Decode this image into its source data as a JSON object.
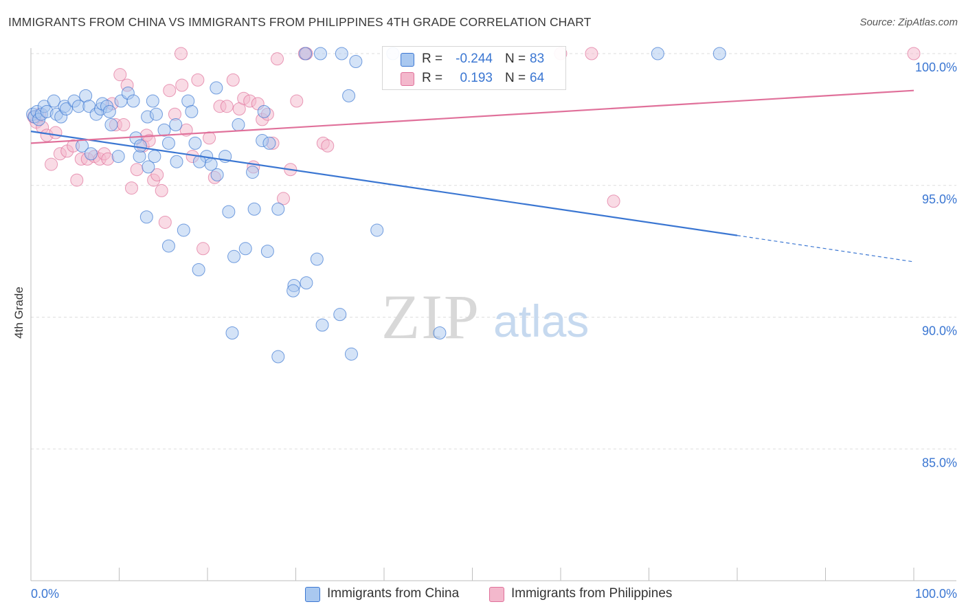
{
  "title": "IMMIGRANTS FROM CHINA VS IMMIGRANTS FROM PHILIPPINES 4TH GRADE CORRELATION CHART",
  "source": "Source: ZipAtlas.com",
  "watermark": {
    "zip": "ZIP",
    "atlas": "atlas"
  },
  "colors": {
    "china": "#3a76d2",
    "china_fill": "#a9c8f0",
    "philippines": "#e0709a",
    "philippines_fill": "#f3b8cc",
    "grid": "#dddddd",
    "axis_text": "#3a76d2"
  },
  "legend": {
    "rows": [
      {
        "r_label": "R =",
        "r_value": "-0.244",
        "n_label": "N =",
        "n_value": "83"
      },
      {
        "r_label": "R =",
        "r_value": "0.193",
        "n_label": "N =",
        "n_value": "64"
      }
    ]
  },
  "bottom_legend": {
    "china": "Immigrants from China",
    "philippines": "Immigrants from Philippines"
  },
  "chart_data": {
    "type": "scatter",
    "title": "IMMIGRANTS FROM CHINA VS IMMIGRANTS FROM PHILIPPINES 4TH GRADE CORRELATION CHART",
    "xlabel": "",
    "ylabel": "4th Grade",
    "xlim": [
      0,
      100
    ],
    "ylim": [
      80.5,
      100.8
    ],
    "x_tick_labels": [
      "0.0%",
      "100.0%"
    ],
    "y_ticks": [
      85,
      90,
      95,
      100
    ],
    "y_tick_labels": [
      "85.0%",
      "90.0%",
      "95.0%",
      "100.0%"
    ],
    "grid": true,
    "series": [
      {
        "name": "Immigrants from China",
        "color": "#3a76d2",
        "r": -0.244,
        "n": 83,
        "trend": {
          "x0": 0,
          "y0": 97.05,
          "x1": 80,
          "y1": 93.1,
          "dash_to_x": 100,
          "dash_to_y": 92.1
        },
        "points": [
          [
            0.2,
            97.7
          ],
          [
            0.4,
            97.6
          ],
          [
            0.7,
            97.8
          ],
          [
            0.9,
            97.5
          ],
          [
            1.2,
            97.7
          ],
          [
            1.5,
            98.0
          ],
          [
            1.8,
            97.8
          ],
          [
            2.6,
            98.2
          ],
          [
            2.9,
            97.7
          ],
          [
            3.4,
            97.6
          ],
          [
            3.8,
            98.0
          ],
          [
            4.0,
            97.9
          ],
          [
            4.9,
            98.2
          ],
          [
            5.4,
            98.0
          ],
          [
            6.2,
            98.4
          ],
          [
            6.6,
            98.0
          ],
          [
            7.4,
            97.7
          ],
          [
            7.9,
            97.9
          ],
          [
            8.1,
            98.1
          ],
          [
            8.6,
            98.0
          ],
          [
            8.9,
            97.8
          ],
          [
            9.1,
            97.3
          ],
          [
            9.9,
            96.1
          ],
          [
            10.2,
            98.2
          ],
          [
            11.0,
            98.5
          ],
          [
            11.6,
            98.2
          ],
          [
            12.3,
            96.1
          ],
          [
            13.2,
            97.6
          ],
          [
            13.8,
            98.2
          ],
          [
            14.2,
            97.7
          ],
          [
            15.1,
            97.1
          ],
          [
            15.6,
            96.6
          ],
          [
            16.4,
            97.3
          ],
          [
            17.8,
            98.2
          ],
          [
            18.2,
            97.8
          ],
          [
            18.6,
            96.6
          ],
          [
            19.9,
            96.1
          ],
          [
            20.4,
            95.8
          ],
          [
            21.1,
            95.4
          ],
          [
            22.0,
            96.1
          ],
          [
            23.5,
            97.3
          ],
          [
            25.1,
            95.5
          ],
          [
            26.2,
            96.7
          ],
          [
            26.4,
            97.8
          ],
          [
            27.0,
            96.6
          ],
          [
            28.0,
            94.1
          ],
          [
            31.1,
            100.0
          ],
          [
            32.8,
            100.0
          ],
          [
            35.2,
            100.0
          ],
          [
            36.8,
            99.7
          ],
          [
            36.0,
            98.4
          ],
          [
            41.0,
            100.0
          ],
          [
            71.0,
            100.0
          ],
          [
            78.0,
            100.0
          ],
          [
            5.8,
            96.5
          ],
          [
            6.8,
            96.2
          ],
          [
            13.3,
            95.7
          ],
          [
            14.0,
            96.1
          ],
          [
            16.5,
            95.9
          ],
          [
            19.1,
            95.9
          ],
          [
            21.0,
            98.7
          ],
          [
            11.9,
            96.8
          ],
          [
            12.4,
            96.5
          ],
          [
            13.1,
            93.8
          ],
          [
            15.6,
            92.7
          ],
          [
            17.3,
            93.3
          ],
          [
            19.0,
            91.8
          ],
          [
            22.4,
            94.0
          ],
          [
            22.8,
            89.4
          ],
          [
            23.0,
            92.3
          ],
          [
            24.3,
            92.6
          ],
          [
            25.3,
            94.1
          ],
          [
            26.8,
            92.5
          ],
          [
            28.0,
            88.5
          ],
          [
            29.8,
            91.2
          ],
          [
            29.7,
            91.0
          ],
          [
            31.2,
            91.3
          ],
          [
            32.4,
            92.2
          ],
          [
            33.0,
            89.7
          ],
          [
            35.0,
            90.1
          ],
          [
            36.3,
            88.6
          ],
          [
            39.2,
            93.3
          ],
          [
            46.3,
            89.4
          ]
        ]
      },
      {
        "name": "Immigrants from Philippines",
        "color": "#e0709a",
        "r": 0.193,
        "n": 64,
        "trend": {
          "x0": 0,
          "y0": 96.6,
          "x1": 100,
          "y1": 98.6
        },
        "points": [
          [
            0.3,
            97.6
          ],
          [
            0.6,
            97.4
          ],
          [
            1.0,
            97.7
          ],
          [
            1.3,
            97.2
          ],
          [
            1.8,
            96.9
          ],
          [
            2.3,
            95.8
          ],
          [
            2.8,
            97.0
          ],
          [
            3.3,
            96.2
          ],
          [
            4.1,
            96.3
          ],
          [
            4.8,
            96.5
          ],
          [
            5.2,
            95.2
          ],
          [
            5.7,
            96.0
          ],
          [
            6.4,
            96.0
          ],
          [
            7.2,
            96.1
          ],
          [
            7.8,
            96.0
          ],
          [
            8.3,
            96.2
          ],
          [
            8.7,
            96.0
          ],
          [
            9.2,
            98.1
          ],
          [
            9.6,
            97.3
          ],
          [
            10.1,
            99.2
          ],
          [
            10.5,
            97.3
          ],
          [
            10.9,
            98.8
          ],
          [
            11.4,
            94.9
          ],
          [
            12.0,
            95.6
          ],
          [
            12.7,
            96.5
          ],
          [
            13.1,
            96.9
          ],
          [
            13.4,
            96.7
          ],
          [
            13.9,
            95.2
          ],
          [
            14.3,
            95.4
          ],
          [
            14.8,
            94.8
          ],
          [
            15.2,
            93.6
          ],
          [
            15.7,
            98.6
          ],
          [
            16.3,
            97.7
          ],
          [
            17.1,
            98.8
          ],
          [
            17.6,
            97.1
          ],
          [
            18.3,
            96.1
          ],
          [
            18.9,
            99.0
          ],
          [
            19.5,
            92.6
          ],
          [
            20.2,
            96.8
          ],
          [
            20.8,
            95.3
          ],
          [
            21.4,
            98.0
          ],
          [
            22.2,
            98.0
          ],
          [
            22.9,
            99.0
          ],
          [
            23.6,
            97.9
          ],
          [
            24.1,
            98.3
          ],
          [
            24.8,
            98.2
          ],
          [
            25.2,
            95.7
          ],
          [
            25.7,
            98.1
          ],
          [
            26.2,
            97.5
          ],
          [
            26.8,
            97.7
          ],
          [
            27.4,
            96.6
          ],
          [
            27.9,
            99.8
          ],
          [
            28.6,
            94.5
          ],
          [
            29.4,
            95.6
          ],
          [
            30.1,
            98.2
          ],
          [
            31.2,
            100.0
          ],
          [
            33.1,
            96.6
          ],
          [
            33.6,
            96.5
          ],
          [
            17.0,
            100.0
          ],
          [
            31.0,
            100.0
          ],
          [
            60.0,
            100.0
          ],
          [
            63.5,
            100.0
          ],
          [
            66.0,
            94.4
          ],
          [
            100.0,
            100.0
          ]
        ]
      }
    ]
  }
}
